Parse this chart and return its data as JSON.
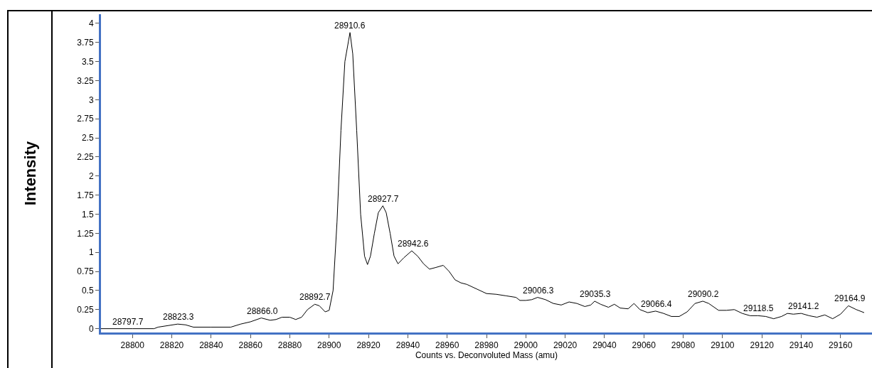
{
  "chart_data": {
    "type": "line",
    "xlabel": "Counts vs. Deconvoluted Mass (amu)",
    "ylabel": "Intensity",
    "color": "#000000",
    "line_style": "solid",
    "marker": "none",
    "grid": false,
    "x": [
      28784,
      28800,
      28811,
      28813,
      28818,
      28823,
      28827,
      28831,
      28840,
      28850,
      28855,
      28860,
      28865.5,
      28870,
      28873,
      28876,
      28880,
      28883,
      28886,
      28889,
      28892.7,
      28895,
      28898,
      28900,
      28902,
      28904,
      28906,
      28908,
      28910.6,
      28912,
      28914,
      28916,
      28918,
      28919.5,
      28921,
      28923,
      28925,
      28927.3,
      28929,
      28931,
      28933,
      28935,
      28938,
      28942,
      28945,
      28948,
      28951,
      28954,
      28958,
      28961,
      28964,
      28967,
      28970,
      28975,
      28980,
      28985,
      28990,
      28995,
      28997,
      29000,
      29003,
      29006,
      29010,
      29014,
      29018,
      29022,
      29026,
      29030,
      29033,
      29035,
      29038,
      29042,
      29045,
      29048,
      29052,
      29055,
      29058,
      29062,
      29066,
      29070,
      29074,
      29078,
      29082,
      29086,
      29090,
      29093,
      29098,
      29102,
      29106,
      29110,
      29114,
      29118,
      29122,
      29126,
      29130,
      29133,
      29136,
      29140,
      29144,
      29148,
      29152,
      29156,
      29160,
      29164,
      29168,
      29172
    ],
    "values": [
      0,
      0,
      0,
      0.02,
      0.04,
      0.06,
      0.05,
      0.02,
      0.02,
      0.02,
      0.06,
      0.09,
      0.14,
      0.11,
      0.12,
      0.15,
      0.15,
      0.12,
      0.15,
      0.25,
      0.32,
      0.3,
      0.22,
      0.24,
      0.5,
      1.4,
      2.6,
      3.5,
      3.88,
      3.6,
      2.6,
      1.5,
      0.95,
      0.84,
      0.95,
      1.25,
      1.52,
      1.61,
      1.52,
      1.25,
      0.95,
      0.85,
      0.93,
      1.02,
      0.95,
      0.85,
      0.78,
      0.8,
      0.83,
      0.75,
      0.64,
      0.6,
      0.58,
      0.52,
      0.46,
      0.45,
      0.43,
      0.41,
      0.37,
      0.37,
      0.38,
      0.41,
      0.38,
      0.33,
      0.31,
      0.35,
      0.33,
      0.29,
      0.31,
      0.36,
      0.32,
      0.28,
      0.32,
      0.27,
      0.26,
      0.33,
      0.25,
      0.21,
      0.23,
      0.2,
      0.16,
      0.16,
      0.22,
      0.33,
      0.36,
      0.33,
      0.24,
      0.24,
      0.25,
      0.2,
      0.17,
      0.17,
      0.16,
      0.13,
      0.16,
      0.2,
      0.19,
      0.2,
      0.17,
      0.15,
      0.18,
      0.13,
      0.19,
      0.3,
      0.25,
      0.21
    ],
    "xlim": [
      28784,
      29176
    ],
    "xticks": [
      28800,
      28820,
      28840,
      28860,
      28880,
      28900,
      28920,
      28940,
      28960,
      28980,
      29000,
      29020,
      29040,
      29060,
      29080,
      29100,
      29120,
      29140,
      29160
    ],
    "ylim": [
      -0.05,
      4.12
    ],
    "yticks": [
      0,
      0.25,
      0.5,
      0.75,
      1,
      1.25,
      1.5,
      1.75,
      2,
      2.25,
      2.5,
      2.75,
      3,
      3.25,
      3.5,
      3.75,
      4
    ],
    "annotations": [
      {
        "text": "28797.7",
        "x": 28797.7,
        "y": 0
      },
      {
        "text": "28823.3",
        "x": 28823.3,
        "y": 0.06
      },
      {
        "text": "28866.0",
        "x": 28866.0,
        "y": 0.14
      },
      {
        "text": "28892.7",
        "x": 28892.7,
        "y": 0.32
      },
      {
        "text": "28910.6",
        "x": 28910.6,
        "y": 3.88
      },
      {
        "text": "28927.7",
        "x": 28927.7,
        "y": 1.61
      },
      {
        "text": "28942.6",
        "x": 28942.6,
        "y": 1.02
      },
      {
        "text": "29006.3",
        "x": 29006.3,
        "y": 0.41
      },
      {
        "text": "29035.3",
        "x": 29035.3,
        "y": 0.36
      },
      {
        "text": "29066.4",
        "x": 29066.4,
        "y": 0.23
      },
      {
        "text": "29090.2",
        "x": 29090.2,
        "y": 0.36
      },
      {
        "text": "29118.5",
        "x": 29118.5,
        "y": 0.17
      },
      {
        "text": "29141.2",
        "x": 29141.2,
        "y": 0.2
      },
      {
        "text": "29164.9",
        "x": 29164.9,
        "y": 0.3
      }
    ]
  }
}
